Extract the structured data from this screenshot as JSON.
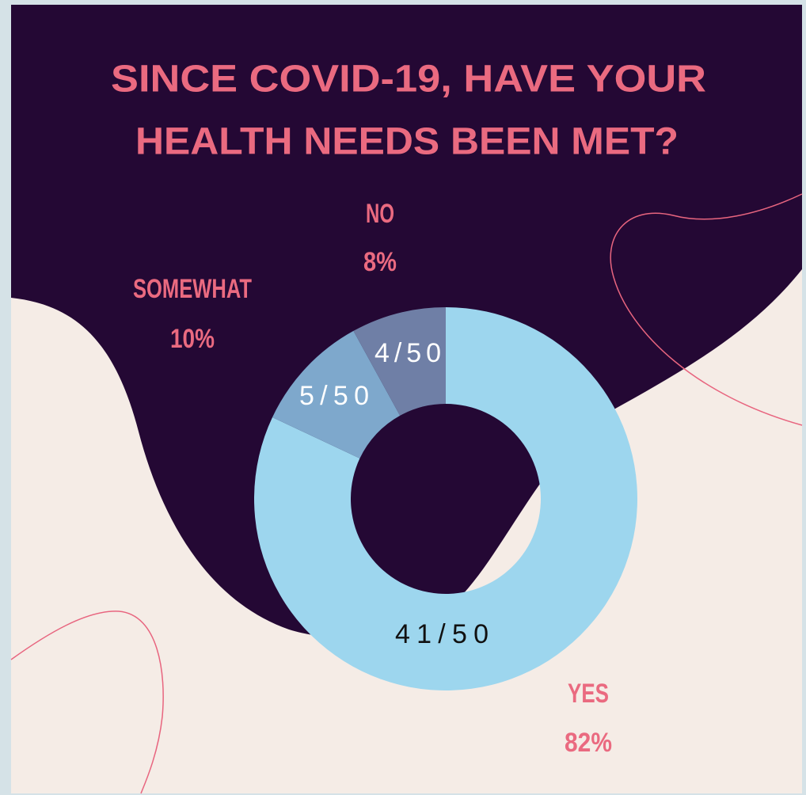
{
  "chart_data": {
    "type": "donut",
    "title": [
      "SINCE COVID-19, HAVE YOUR",
      "HEALTH NEEDS BEEN MET?"
    ],
    "categories": [
      "YES",
      "SOMEWHAT",
      "NO"
    ],
    "values": [
      82,
      10,
      8
    ],
    "value_labels": [
      "82%",
      "10%",
      "8%"
    ],
    "slice_labels": [
      "41/50",
      "5/50",
      "4/50"
    ],
    "colors": [
      "#9dd6ee",
      "#7ea8cc",
      "#6f7fa6"
    ]
  }
}
